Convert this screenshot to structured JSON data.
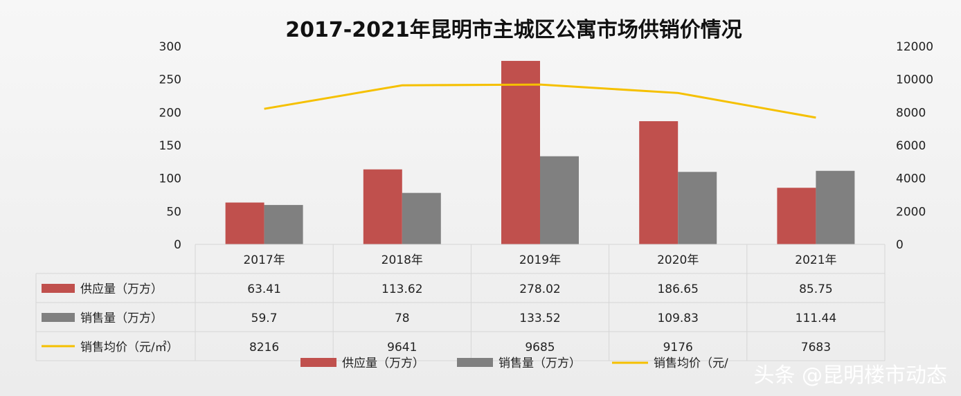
{
  "chart_data": {
    "type": "bar",
    "title": "2017-2021年昆明市主城区公寓市场供销价情况",
    "categories": [
      "2017年",
      "2018年",
      "2019年",
      "2020年",
      "2021年"
    ],
    "ylim": [
      0,
      300
    ],
    "yticks": [
      "0",
      "50",
      "100",
      "150",
      "200",
      "250",
      "300"
    ],
    "y2lim": [
      0,
      12000
    ],
    "y2ticks": [
      "0",
      "2000",
      "4000",
      "6000",
      "8000",
      "10000",
      "12000"
    ],
    "series": [
      {
        "name": "供应量（万方）",
        "kind": "bar",
        "axis": "left",
        "color": "#c0504d",
        "values": [
          63.41,
          113.62,
          278.02,
          186.65,
          85.75
        ],
        "labels": [
          "63.41",
          "113.62",
          "278.02",
          "186.65",
          "85.75"
        ]
      },
      {
        "name": "销售量（万方）",
        "kind": "bar",
        "axis": "left",
        "color": "#808080",
        "values": [
          59.7,
          78,
          133.52,
          109.83,
          111.44
        ],
        "labels": [
          "59.7",
          "78",
          "133.52",
          "109.83",
          "111.44"
        ]
      },
      {
        "name": "销售均价（元/㎡）",
        "kind": "line",
        "axis": "right",
        "color": "#f5c000",
        "values": [
          8216,
          9641,
          9685,
          9176,
          7683
        ],
        "labels": [
          "8216",
          "9641",
          "9685",
          "9176",
          "7683"
        ]
      }
    ],
    "legend": {
      "position": "bottom",
      "items": [
        "供应量（万方）",
        "销售量（万方）",
        "销售均价（元/"
      ]
    },
    "data_table": true
  },
  "watermark": "头条 @昆明楼市动态"
}
